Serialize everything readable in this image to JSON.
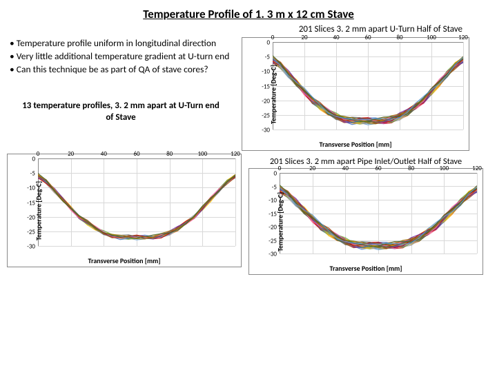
{
  "title": "Temperature Profile of 1. 3 m x 12 cm Stave",
  "subtitle_top_right": "201 Slices 3. 2 mm apart U-Turn Half of Stave",
  "bullets": [
    "• Temperature profile uniform in longitudinal direction",
    "• Very little additional temperature gradient at U-turn end",
    "• Can this technique be as part of QA of stave cores?"
  ],
  "caption_left": "13 temperature profiles, 3. 2 mm apart at U-Turn end of Stave",
  "subtitle_bottom_right": "201 Slices 3. 2 mm apart Pipe Inlet/Outlet Half of Stave",
  "chart": {
    "type": "line",
    "ylabel": "Temperature [Deg-C]",
    "xlabel": "Transverse Position [mm]",
    "xlim": [
      0,
      120
    ],
    "ylim": [
      -30,
      0
    ],
    "xticks": [
      0,
      20,
      40,
      60,
      80,
      100,
      120
    ],
    "yticks": [
      0,
      -5,
      -10,
      -15,
      -20,
      -25,
      -30
    ],
    "grid_color": "#d8d8d8",
    "axis_color": "#888888",
    "background_color": "#ffffff",
    "label_fontsize": 10,
    "tick_fontsize": 9,
    "series_colors": [
      "#5b9bd5",
      "#ed7d31",
      "#a5a5a5",
      "#ffc000",
      "#70ad47",
      "#4472c4",
      "#c00000",
      "#7030a0",
      "#ff6699",
      "#9e480e",
      "#636363",
      "#997300",
      "#43682b"
    ],
    "line_width": 1.2,
    "base_profile_x": [
      0,
      5,
      10,
      15,
      20,
      25,
      30,
      35,
      40,
      45,
      50,
      55,
      60,
      65,
      70,
      75,
      80,
      85,
      90,
      95,
      100,
      105,
      110,
      115,
      120
    ],
    "base_profile_y": [
      -6,
      -8,
      -11,
      -14,
      -17,
      -20,
      -22,
      -24,
      -25.5,
      -26.5,
      -27,
      -27,
      -27,
      -27,
      -27,
      -26.5,
      -25.5,
      -24,
      -22,
      -20,
      -17,
      -14,
      -11,
      -8,
      -6
    ]
  },
  "chart_variants": {
    "top_right": {
      "n_series": 40,
      "jitter": 1.0
    },
    "bottom_left": {
      "n_series": 13,
      "jitter": 0.8
    },
    "bottom_right": {
      "n_series": 40,
      "jitter": 1.2
    }
  }
}
